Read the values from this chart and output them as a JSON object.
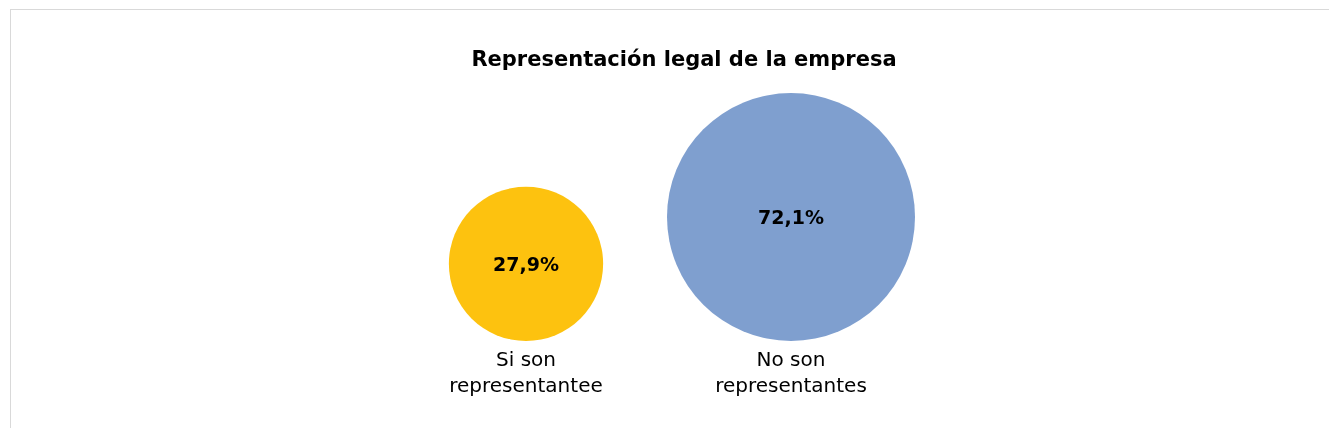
{
  "chart_data": {
    "type": "other",
    "title": "Representación legal de la empresa",
    "categories": [
      "Si son representantee",
      "No son representantes"
    ],
    "values": [
      27.9,
      72.1
    ],
    "value_labels": [
      "27,9%",
      "72,1%"
    ],
    "colors": [
      "#fdc20f",
      "#7f9fcf"
    ]
  }
}
